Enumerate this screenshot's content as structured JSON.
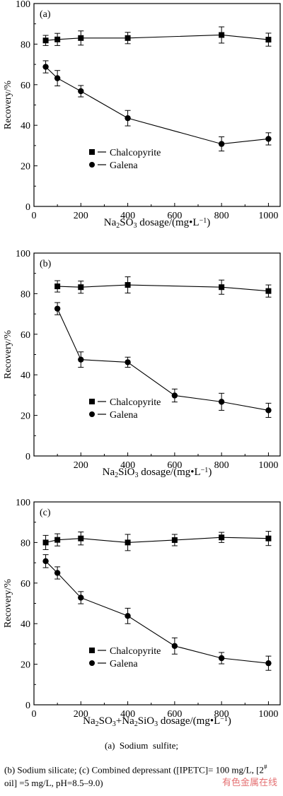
{
  "chart_data": [
    {
      "type": "line",
      "panel_label": "(a)",
      "xlabel_parts": [
        {
          "t": "Na",
          "s": ""
        },
        {
          "t": "2",
          "s": "sub"
        },
        {
          "t": "SO",
          "s": ""
        },
        {
          "t": "3",
          "s": "sub"
        },
        {
          "t": " dosage/(mg•L",
          "s": ""
        },
        {
          "t": "−1",
          "s": "sup"
        },
        {
          "t": ")",
          "s": ""
        }
      ],
      "ylabel": "Recovery/%",
      "xlim": [
        0,
        1050
      ],
      "ylim": [
        0,
        100
      ],
      "xticks": [
        0,
        200,
        400,
        600,
        800,
        1000
      ],
      "yticks": [
        0,
        20,
        40,
        60,
        80,
        100
      ],
      "legend_position": "lower-center",
      "series": [
        {
          "name": "Chalcopyrite",
          "marker": "square",
          "x": [
            50,
            100,
            200,
            400,
            800,
            1000
          ],
          "y": [
            81.8,
            82.3,
            83.0,
            83.0,
            84.5,
            82.2
          ],
          "err": [
            2.5,
            3.0,
            3.5,
            2.8,
            4.0,
            3.2
          ]
        },
        {
          "name": "Galena",
          "marker": "circle",
          "x": [
            50,
            100,
            200,
            400,
            800,
            1000
          ],
          "y": [
            68.8,
            63.2,
            56.8,
            43.5,
            30.8,
            33.3
          ],
          "err": [
            3.0,
            3.8,
            2.8,
            3.8,
            3.5,
            3.0
          ]
        }
      ]
    },
    {
      "type": "line",
      "panel_label": "(b)",
      "xlabel_parts": [
        {
          "t": "Na",
          "s": ""
        },
        {
          "t": "2",
          "s": "sub"
        },
        {
          "t": "SiO",
          "s": ""
        },
        {
          "t": "3",
          "s": "sub"
        },
        {
          "t": " dosage/(mg•L",
          "s": ""
        },
        {
          "t": "−1",
          "s": "sup"
        },
        {
          "t": ")",
          "s": ""
        }
      ],
      "ylabel": "Recovery/%",
      "xlim": [
        0,
        1050
      ],
      "ylim": [
        0,
        100
      ],
      "xticks": [
        200,
        400,
        600,
        800,
        1000
      ],
      "yticks": [
        0,
        20,
        40,
        60,
        80,
        100
      ],
      "legend_position": "lower-center",
      "series": [
        {
          "name": "Chalcopyrite",
          "marker": "square",
          "x": [
            100,
            200,
            400,
            800,
            1000
          ],
          "y": [
            83.6,
            83.2,
            84.3,
            83.2,
            81.3
          ],
          "err": [
            2.8,
            3.0,
            4.0,
            3.5,
            3.0
          ]
        },
        {
          "name": "Galena",
          "marker": "circle",
          "x": [
            100,
            200,
            400,
            600,
            800,
            1000
          ],
          "y": [
            72.6,
            47.5,
            46.2,
            29.8,
            26.7,
            22.5
          ],
          "err": [
            3.0,
            3.8,
            2.5,
            3.2,
            4.2,
            3.5
          ]
        }
      ]
    },
    {
      "type": "line",
      "panel_label": "(c)",
      "xlabel_parts": [
        {
          "t": "Na",
          "s": ""
        },
        {
          "t": "2",
          "s": "sub"
        },
        {
          "t": "SO",
          "s": ""
        },
        {
          "t": "3",
          "s": "sub"
        },
        {
          "t": "+Na",
          "s": ""
        },
        {
          "t": "2",
          "s": "sub"
        },
        {
          "t": "SiO",
          "s": ""
        },
        {
          "t": "3",
          "s": "sub"
        },
        {
          "t": " dosage/(mg•L",
          "s": ""
        },
        {
          "t": "−1",
          "s": "sup"
        },
        {
          "t": ")",
          "s": ""
        }
      ],
      "ylabel": "Recovery/%",
      "xlim": [
        0,
        1050
      ],
      "ylim": [
        0,
        100
      ],
      "xticks": [
        0,
        200,
        400,
        600,
        800,
        1000
      ],
      "yticks": [
        0,
        20,
        40,
        60,
        80,
        100
      ],
      "legend_position": "lower-center",
      "series": [
        {
          "name": "Chalcopyrite",
          "marker": "square",
          "x": [
            50,
            100,
            200,
            400,
            600,
            800,
            1000
          ],
          "y": [
            80.0,
            81.3,
            82.0,
            80.0,
            81.2,
            82.5,
            82.0
          ],
          "err": [
            3.5,
            3.0,
            3.2,
            4.0,
            2.8,
            2.5,
            3.5
          ]
        },
        {
          "name": "Galena",
          "marker": "circle",
          "x": [
            50,
            100,
            200,
            400,
            600,
            800,
            1000
          ],
          "y": [
            70.8,
            65.0,
            52.8,
            43.8,
            29.0,
            23.0,
            20.5
          ],
          "err": [
            3.2,
            3.0,
            3.0,
            3.8,
            4.0,
            2.8,
            3.5
          ]
        }
      ]
    }
  ],
  "captions": {
    "a": "(a)  Sodium  sulfite;",
    "bc_parts": [
      {
        "t": "(b) Sodium silicate; (c) Combined depressant ([IPETC]= 100 mg/L, [2",
        "s": ""
      },
      {
        "t": "#",
        "s": "sup"
      },
      {
        "t": " oil] =5 mg/L, pH=8.5–9.0)",
        "s": ""
      }
    ]
  },
  "watermark": "有色金属在线"
}
